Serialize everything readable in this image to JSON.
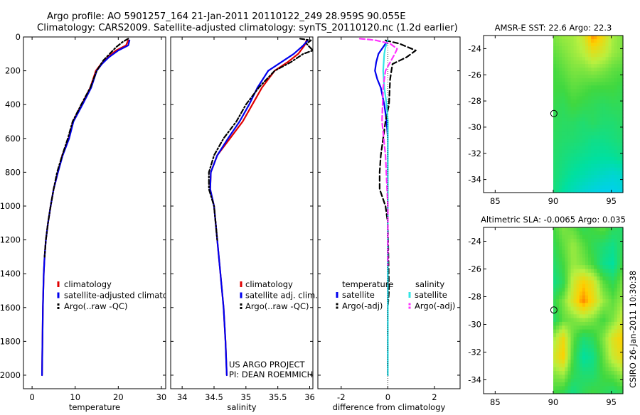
{
  "title_line1": "Argo profile: AO 5901257_164 21-Jan-2011 20110122_249 28.959S 90.055E",
  "title_line2": "Climatology: CARS2009. Satellite-adjusted climatology: synTS_20110120.nc (1.2d earlier)",
  "credits": {
    "project": "US ARGO PROJECT",
    "pi": "PI: DEAN ROEMMICH"
  },
  "side_stamp": "CSIRO 26-Jan-2011 10:30:38",
  "colors": {
    "red": "#e00000",
    "blue": "#0000ee",
    "black": "#000000",
    "cyan": "#33e5e5",
    "magenta": "#ff33ff"
  },
  "chart_data": [
    {
      "id": "temperature",
      "type": "line",
      "xlabel": "temperature",
      "ylabel": "depth",
      "xlim": [
        -2,
        31
      ],
      "ylim": [
        0,
        2080
      ],
      "y_inverted": true,
      "xticks": [
        0,
        10,
        20,
        30
      ],
      "yticks": [
        0,
        200,
        400,
        600,
        800,
        1000,
        1200,
        1400,
        1600,
        1800,
        2000
      ],
      "legend": [
        "climatology",
        "satellite-adjusted climatology",
        "Argo(..raw -QC)"
      ],
      "series": [
        {
          "name": "climatology",
          "color": "red",
          "dash": "",
          "x": [
            22.3,
            21.8,
            19.5,
            17.5,
            16,
            14.8,
            13.5,
            11.5,
            9.5,
            8.5,
            7,
            6,
            5,
            4.3,
            3.7,
            3.2,
            2.9,
            2.7,
            2.5,
            2.4,
            2.3
          ],
          "y": [
            20,
            50,
            80,
            120,
            160,
            200,
            300,
            400,
            500,
            600,
            700,
            800,
            900,
            1000,
            1100,
            1200,
            1300,
            1400,
            1600,
            1800,
            2000
          ]
        },
        {
          "name": "satellite-adjusted climatology",
          "color": "blue",
          "dash": "",
          "x": [
            22.6,
            22.3,
            20,
            17.8,
            16.2,
            15,
            13.7,
            11.7,
            9.6,
            8.6,
            7.1,
            6,
            5,
            4.3,
            3.7,
            3.2,
            2.9,
            2.7,
            2.5,
            2.4,
            2.3
          ],
          "y": [
            20,
            50,
            80,
            120,
            160,
            200,
            300,
            400,
            500,
            600,
            700,
            800,
            900,
            1000,
            1100,
            1200,
            1300,
            1400,
            1600,
            1800,
            2000
          ]
        },
        {
          "name": "Argo(..raw -QC)",
          "color": "black",
          "dash": "6,3,2,3",
          "x": [
            22.3,
            21,
            19.5,
            18,
            16.5,
            15,
            13.5,
            11.4,
            9.4,
            8.3,
            7,
            5.8,
            5,
            4.3,
            3.7,
            3.2,
            2.9
          ],
          "y": [
            10,
            30,
            60,
            100,
            140,
            200,
            300,
            400,
            500,
            600,
            700,
            800,
            900,
            1000,
            1100,
            1200,
            1300
          ]
        }
      ]
    },
    {
      "id": "salinity",
      "type": "line",
      "xlabel": "salinity",
      "ylabel": "depth",
      "xlim": [
        33.82,
        36.05
      ],
      "ylim": [
        0,
        2080
      ],
      "y_inverted": true,
      "xticks": [
        34,
        34.5,
        35,
        35.5,
        36
      ],
      "legend": [
        "climatology",
        "satellite adj. clim.",
        "Argo(..raw -QC)"
      ],
      "series": [
        {
          "name": "climatology",
          "color": "red",
          "dash": "",
          "x": [
            35.95,
            35.92,
            35.82,
            35.65,
            35.45,
            35.25,
            35.1,
            34.95,
            34.75,
            34.55,
            34.45,
            34.44,
            34.5,
            34.55,
            34.6,
            34.65,
            34.68,
            34.7
          ],
          "y": [
            20,
            50,
            100,
            150,
            200,
            300,
            400,
            500,
            600,
            700,
            800,
            900,
            1000,
            1200,
            1400,
            1600,
            1800,
            2000
          ]
        },
        {
          "name": "satellite adj. clim.",
          "color": "blue",
          "dash": "",
          "x": [
            35.97,
            35.9,
            35.75,
            35.55,
            35.35,
            35.18,
            35.05,
            34.9,
            34.72,
            34.55,
            34.45,
            34.44,
            34.5,
            34.55,
            34.6,
            34.65,
            34.68,
            34.7
          ],
          "y": [
            20,
            50,
            100,
            150,
            200,
            300,
            400,
            500,
            600,
            700,
            800,
            900,
            1000,
            1200,
            1400,
            1600,
            1800,
            2000
          ]
        },
        {
          "name": "Argo(..raw -QC)",
          "color": "black",
          "dash": "6,3,2,3",
          "x": [
            35.85,
            36.02,
            35.95,
            36.05,
            35.9,
            35.7,
            35.45,
            35.2,
            35.0,
            34.85,
            34.65,
            34.5,
            34.42,
            34.42,
            34.5,
            34.55
          ],
          "y": [
            10,
            20,
            40,
            80,
            100,
            150,
            200,
            300,
            400,
            500,
            600,
            700,
            800,
            900,
            1000,
            1200
          ]
        }
      ]
    },
    {
      "id": "difference",
      "type": "line",
      "xlabel": "difference from climatology",
      "ylabel": "depth",
      "xlim": [
        -3,
        3.1
      ],
      "ylim": [
        0,
        2080
      ],
      "y_inverted": true,
      "xticks": [
        -2,
        0,
        2
      ],
      "legend_groups": [
        {
          "heading": "temperature",
          "items": [
            "satellite",
            "Argo(-adj)"
          ]
        },
        {
          "heading": "salinity",
          "items": [
            "satellite",
            "Argo(-adj)"
          ]
        }
      ],
      "series": [
        {
          "name": "temperature satellite",
          "color": "blue",
          "dash": "",
          "x": [
            0,
            -0.2,
            -0.4,
            -0.5,
            -0.55,
            -0.45,
            -0.3,
            -0.15,
            -0.05,
            0,
            0,
            0,
            0
          ],
          "y": [
            20,
            60,
            100,
            150,
            200,
            250,
            300,
            400,
            500,
            600,
            800,
            1200,
            2000
          ]
        },
        {
          "name": "temperature Argo(-adj)",
          "color": "black",
          "dash": "7,4",
          "x": [
            -0.1,
            0.5,
            1.2,
            0.8,
            0.2,
            0.1,
            0.05,
            -0.1,
            -0.3,
            -0.35,
            -0.35,
            -0.1,
            0,
            0.05,
            0,
            0
          ],
          "y": [
            20,
            40,
            80,
            120,
            160,
            250,
            400,
            500,
            700,
            800,
            900,
            1000,
            1100,
            1500,
            1600,
            2000
          ]
        },
        {
          "name": "salinity satellite",
          "color": "cyan",
          "dash": "",
          "x": [
            0,
            -0.1,
            -0.15,
            -0.2,
            -0.15,
            -0.05,
            0,
            0,
            0,
            0
          ],
          "y": [
            20,
            60,
            100,
            200,
            300,
            400,
            500,
            800,
            1200,
            2000
          ]
        },
        {
          "name": "salinity Argo(-adj)",
          "color": "magenta",
          "dash": "7,4",
          "x": [
            -1.2,
            -0.8,
            -0.5,
            0.1,
            0.4,
            0.3,
            0.1,
            -0.1,
            -0.2,
            -0.25,
            -0.1,
            0,
            0,
            0
          ],
          "y": [
            10,
            15,
            20,
            40,
            70,
            100,
            150,
            200,
            300,
            500,
            700,
            1000,
            1300,
            1350
          ]
        }
      ]
    },
    {
      "id": "sst_map",
      "type": "heatmap",
      "title": "AMSR-E SST: 22.6 Argo: 22.3",
      "xlim": [
        84,
        96
      ],
      "ylim": [
        -35,
        -23
      ],
      "xticks": [
        85,
        90,
        95
      ],
      "yticks": [
        -24,
        -26,
        -28,
        -30,
        -32,
        -34
      ],
      "data_x_range": [
        90,
        96
      ],
      "marker": {
        "lon": 90.055,
        "lat": -28.959
      },
      "colormap": [
        [
          0.0,
          "#00ccff"
        ],
        [
          0.25,
          "#00e0a0"
        ],
        [
          0.45,
          "#40d840"
        ],
        [
          0.65,
          "#b8f040"
        ],
        [
          0.85,
          "#ffd000"
        ],
        [
          1.0,
          "#ff6000"
        ]
      ],
      "grid_rows": [
        [
          0.55,
          0.6,
          0.62,
          0.7,
          0.95,
          0.8,
          0.62,
          0.55
        ],
        [
          0.5,
          0.55,
          0.6,
          0.65,
          0.75,
          0.7,
          0.6,
          0.55
        ],
        [
          0.45,
          0.5,
          0.55,
          0.55,
          0.58,
          0.55,
          0.5,
          0.48
        ],
        [
          0.45,
          0.45,
          0.5,
          0.48,
          0.45,
          0.45,
          0.45,
          0.42
        ],
        [
          0.42,
          0.4,
          0.45,
          0.42,
          0.4,
          0.38,
          0.4,
          0.4
        ],
        [
          0.4,
          0.38,
          0.38,
          0.35,
          0.38,
          0.35,
          0.35,
          0.38
        ],
        [
          0.38,
          0.36,
          0.35,
          0.33,
          0.3,
          0.3,
          0.32,
          0.35
        ],
        [
          0.36,
          0.33,
          0.3,
          0.28,
          0.26,
          0.25,
          0.26,
          0.3
        ],
        [
          0.35,
          0.3,
          0.25,
          0.22,
          0.18,
          0.15,
          0.12,
          0.15
        ],
        [
          0.33,
          0.25,
          0.18,
          0.12,
          0.08,
          0.05,
          0.05,
          0.08
        ]
      ]
    },
    {
      "id": "sla_map",
      "type": "heatmap",
      "title": "Altimetric SLA: -0.0065 Argo: 0.035",
      "xlim": [
        84,
        96
      ],
      "ylim": [
        -35,
        -23
      ],
      "xticks": [
        85,
        90,
        95
      ],
      "yticks": [
        -24,
        -26,
        -28,
        -30,
        -32,
        -34
      ],
      "data_x_range": [
        90,
        96
      ],
      "marker": {
        "lon": 90.055,
        "lat": -28.959
      },
      "colormap": [
        [
          0.0,
          "#00ccff"
        ],
        [
          0.25,
          "#00e0a0"
        ],
        [
          0.45,
          "#40d840"
        ],
        [
          0.65,
          "#b8f040"
        ],
        [
          0.85,
          "#ffd000"
        ],
        [
          1.0,
          "#ff6000"
        ]
      ],
      "grid_rows": [
        [
          0.45,
          0.55,
          0.5,
          0.4,
          0.45,
          0.5,
          0.4,
          0.35
        ],
        [
          0.4,
          0.5,
          0.6,
          0.5,
          0.4,
          0.35,
          0.3,
          0.4
        ],
        [
          0.35,
          0.45,
          0.6,
          0.55,
          0.45,
          0.3,
          0.25,
          0.45
        ],
        [
          0.3,
          0.4,
          0.7,
          0.85,
          0.75,
          0.5,
          0.4,
          0.55
        ],
        [
          0.4,
          0.55,
          0.75,
          0.95,
          0.8,
          0.6,
          0.5,
          0.6
        ],
        [
          0.35,
          0.5,
          0.55,
          0.6,
          0.55,
          0.45,
          0.55,
          0.7
        ],
        [
          0.6,
          0.8,
          0.5,
          0.35,
          0.4,
          0.55,
          0.75,
          0.85
        ],
        [
          0.7,
          0.85,
          0.45,
          0.25,
          0.3,
          0.5,
          0.7,
          0.8
        ],
        [
          0.55,
          0.6,
          0.4,
          0.35,
          0.35,
          0.45,
          0.5,
          0.6
        ],
        [
          0.45,
          0.4,
          0.3,
          0.4,
          0.45,
          0.4,
          0.35,
          0.4
        ]
      ]
    }
  ]
}
